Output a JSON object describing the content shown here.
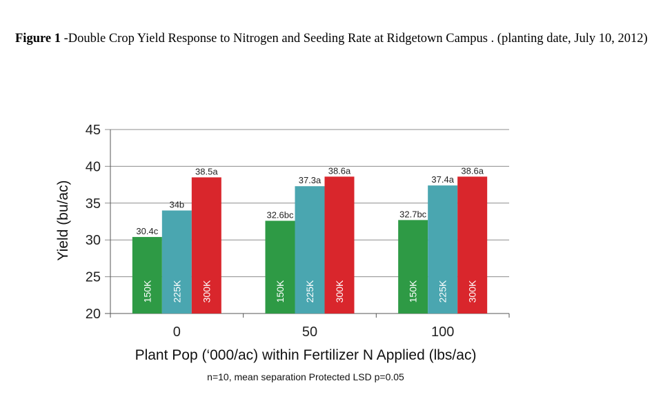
{
  "caption": {
    "label": "Figure 1",
    "text": " -Double Crop Yield Response to Nitrogen and Seeding Rate at Ridgetown Campus . (planting date, July 10, 2012)"
  },
  "chart_data": {
    "type": "bar",
    "categories": [
      "0",
      "50",
      "100"
    ],
    "series": [
      {
        "name": "150K",
        "color": "#2e9a45",
        "values": [
          30.4,
          32.6,
          32.7
        ],
        "labels": [
          "30.4c",
          "32.6bc",
          "32.7bc"
        ]
      },
      {
        "name": "225K",
        "color": "#4aa6b0",
        "values": [
          34.0,
          37.3,
          37.4
        ],
        "labels": [
          "34b",
          "37.3a",
          "37.4a"
        ]
      },
      {
        "name": "300K",
        "color": "#d9262c",
        "values": [
          38.5,
          38.6,
          38.6
        ],
        "labels": [
          "38.5a",
          "38.6a",
          "38.6a"
        ]
      }
    ],
    "ylabel": "Yield (bu/ac)",
    "xlabel": "Plant Pop (‘000/ac) within Fertilizer N Applied (lbs/ac)",
    "ylim": [
      20,
      45
    ],
    "yticks": [
      20,
      25,
      30,
      35,
      40,
      45
    ],
    "note": "n=10, mean separation Protected LSD p=0.05",
    "grid": true,
    "legend": "none"
  }
}
